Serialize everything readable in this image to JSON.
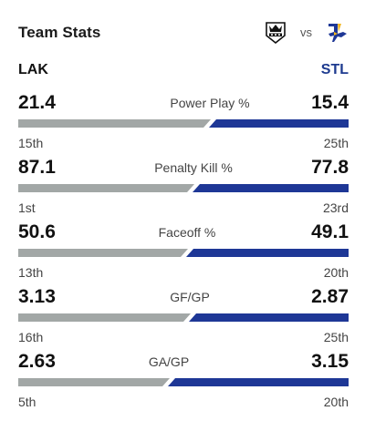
{
  "header": {
    "title": "Team Stats",
    "vs_label": "vs"
  },
  "teams": {
    "home": {
      "abbrev": "LAK",
      "logo_icon": "la-kings-crown-icon",
      "color": "#a2a7a6"
    },
    "away": {
      "abbrev": "STL",
      "logo_icon": "st-louis-blues-note-icon",
      "color": "#1e3796"
    }
  },
  "stats": [
    {
      "label": "Power Play %",
      "home_value": "21.4",
      "away_value": "15.4",
      "home_rank": "15th",
      "away_rank": "25th",
      "home_share": 0.58
    },
    {
      "label": "Penalty Kill %",
      "home_value": "87.1",
      "away_value": "77.8",
      "home_rank": "1st",
      "away_rank": "23rd",
      "home_share": 0.53
    },
    {
      "label": "Faceoff %",
      "home_value": "50.6",
      "away_value": "49.1",
      "home_rank": "13th",
      "away_rank": "20th",
      "home_share": 0.51
    },
    {
      "label": "GF/GP",
      "home_value": "3.13",
      "away_value": "2.87",
      "home_rank": "16th",
      "away_rank": "25th",
      "home_share": 0.52
    },
    {
      "label": "GA/GP",
      "home_value": "2.63",
      "away_value": "3.15",
      "home_rank": "5th",
      "away_rank": "20th",
      "home_share": 0.455
    }
  ]
}
